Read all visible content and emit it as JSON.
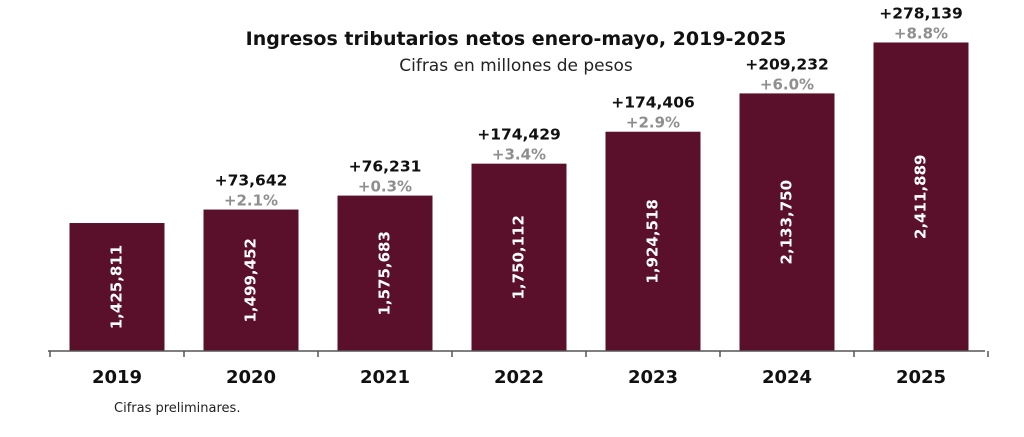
{
  "chart_data": {
    "type": "bar",
    "title": "Ingresos tributarios netos enero-mayo, 2019-2025",
    "subtitle": "Cifras en millones de pesos",
    "categories": [
      "2019",
      "2020",
      "2021",
      "2022",
      "2023",
      "2024",
      "2025"
    ],
    "values": [
      1425811,
      1499452,
      1575683,
      1750112,
      1924518,
      2133750,
      2411889
    ],
    "value_labels": [
      "1,425,811",
      "1,499,452",
      "1,575,683",
      "1,750,112",
      "1,924,518",
      "2,133,750",
      "2,411,889"
    ],
    "increase_labels": [
      "",
      "+73,642",
      "+76,231",
      "+174,429",
      "+174,406",
      "+209,232",
      "+278,139"
    ],
    "percent_labels": [
      "",
      "+2.1%",
      "+0.3%",
      "+3.4%",
      "+2.9%",
      "+6.0%",
      "+8.8%"
    ],
    "bar_color": "#5a0f2a",
    "grid": false,
    "legend": "none",
    "footnote": "Cifras preliminares."
  }
}
